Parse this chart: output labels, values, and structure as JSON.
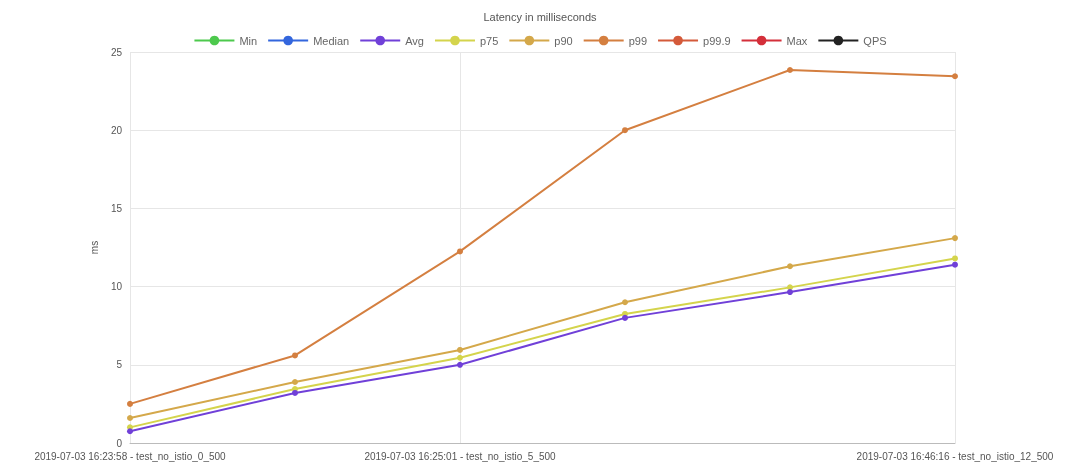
{
  "chart_data": {
    "type": "line",
    "title": "Latency in milliseconds",
    "ylabel": "ms",
    "categories": [
      "2019-07-03 16:23:58 - test_no_istio_0_500",
      null,
      "2019-07-03 16:25:01 - test_no_istio_5_500",
      null,
      null,
      "2019-07-03 16:46:16 - test_no_istio_12_500"
    ],
    "series": [
      {
        "name": "Min",
        "color": "#4dc94d",
        "values": [
          null,
          null,
          null,
          null,
          null,
          null
        ]
      },
      {
        "name": "Median",
        "color": "#3366dd",
        "values": [
          null,
          null,
          null,
          null,
          null,
          null
        ]
      },
      {
        "name": "Avg",
        "color": "#7040d8",
        "values": [
          0.75,
          3.2,
          5.0,
          8.0,
          9.65,
          11.4
        ]
      },
      {
        "name": "p75",
        "color": "#d4d44c",
        "values": [
          1.0,
          3.45,
          5.45,
          8.25,
          9.95,
          11.8
        ]
      },
      {
        "name": "p90",
        "color": "#d4a84a",
        "values": [
          1.6,
          3.9,
          5.95,
          9.0,
          11.3,
          13.1
        ]
      },
      {
        "name": "p99",
        "color": "#d47f40",
        "values": [
          2.5,
          5.6,
          12.25,
          20.0,
          23.85,
          23.45
        ]
      },
      {
        "name": "p99.9",
        "color": "#d45a3a",
        "values": [
          null,
          null,
          null,
          null,
          null,
          null
        ]
      },
      {
        "name": "Max",
        "color": "#d42f3a",
        "values": [
          null,
          null,
          null,
          null,
          null,
          null
        ]
      },
      {
        "name": "QPS",
        "color": "#222222",
        "values": [
          null,
          null,
          null,
          null,
          null,
          null
        ]
      }
    ],
    "ylim": [
      0,
      25
    ],
    "yticks": [
      0,
      5,
      10,
      15,
      20,
      25
    ],
    "grid": true,
    "legend": "top",
    "marker": "circle",
    "line_style": "solid"
  }
}
